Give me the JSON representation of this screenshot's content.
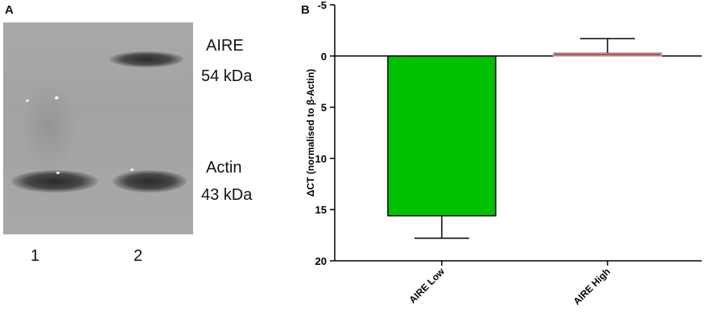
{
  "panels": {
    "a_label": "A",
    "b_label": "B"
  },
  "blot": {
    "lanes": [
      "1",
      "2"
    ],
    "bands": [
      {
        "name": "AIRE",
        "size": "54 kDa"
      },
      {
        "name": "Actin",
        "size": "43 kDa"
      }
    ]
  },
  "chart_data": {
    "type": "bar",
    "categories": [
      "AIRE Low",
      "AIRE High"
    ],
    "values": [
      15.6,
      -0.3
    ],
    "errors": [
      2.2,
      1.4
    ],
    "colors": [
      "#00c000",
      "#c0504d"
    ],
    "ylabel": "ΔCT (normalised to β-Actin)",
    "ylim": [
      -5,
      20
    ],
    "y_inverted": true,
    "yticks": [
      "-5",
      "0",
      "5",
      "10",
      "15",
      "20"
    ],
    "ytick_values": [
      -5,
      0,
      5,
      10,
      15,
      20
    ],
    "grid": false
  }
}
